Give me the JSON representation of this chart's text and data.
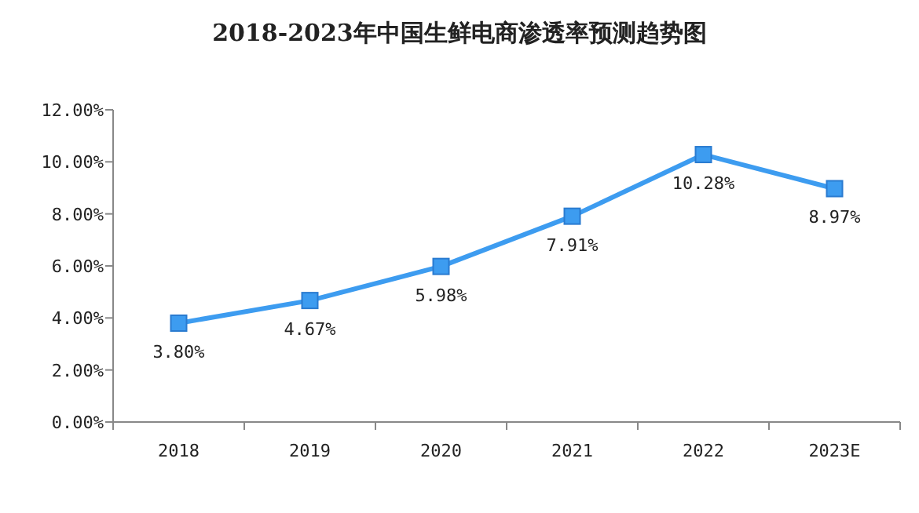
{
  "chart_data": {
    "type": "line",
    "title": "2018-2023年中国生鲜电商渗透率预测趋势图",
    "categories": [
      "2018",
      "2019",
      "2020",
      "2021",
      "2022",
      "2023E"
    ],
    "series": [
      {
        "color": "#3d9cf0",
        "values": [
          3.8,
          4.67,
          5.98,
          7.91,
          10.28,
          8.97
        ],
        "value_labels": [
          "3.80%",
          "4.67%",
          "5.98%",
          "7.91%",
          "10.28%",
          "8.97%"
        ]
      }
    ],
    "ylim": [
      0,
      12
    ],
    "yticks": [
      {
        "value": 0,
        "label": "0.00%"
      },
      {
        "value": 2,
        "label": "2.00%"
      },
      {
        "value": 4,
        "label": "4.00%"
      },
      {
        "value": 6,
        "label": "6.00%"
      },
      {
        "value": 8,
        "label": "8.00%"
      },
      {
        "value": 10,
        "label": "10.00%"
      },
      {
        "value": 12,
        "label": "12.00%"
      }
    ],
    "marker": "square",
    "grid": false
  }
}
